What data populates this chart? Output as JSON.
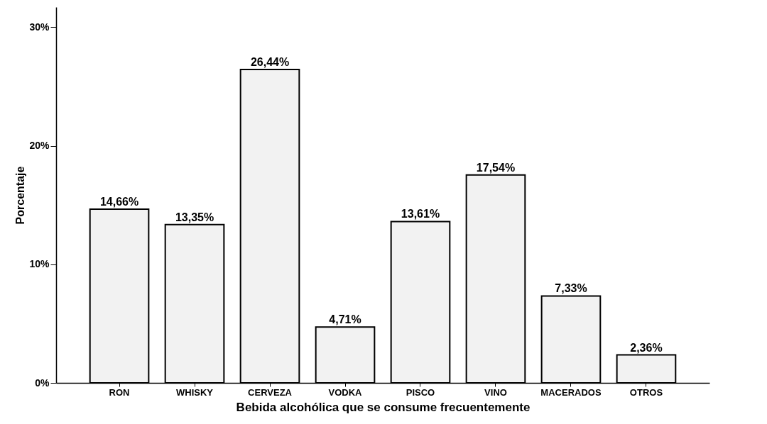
{
  "chart_data": {
    "type": "bar",
    "xlabel": "Bebida alcohólica que se consume frecuentemente",
    "ylabel": "Porcentaje",
    "categories": [
      "RON",
      "WHISKY",
      "CERVEZA",
      "VODKA",
      "PISCO",
      "VINO",
      "MACERADOS",
      "OTROS"
    ],
    "values": [
      14.66,
      13.35,
      26.44,
      4.71,
      13.61,
      17.54,
      7.33,
      2.36
    ],
    "value_labels": [
      "14,66%",
      "13,35%",
      "26,44%",
      "4,71%",
      "13,61%",
      "17,54%",
      "7,33%",
      "2,36%"
    ],
    "color": "#f2f2f2",
    "ylim": [
      0,
      31.7
    ],
    "yticks": [
      {
        "value": 0,
        "label": "0%"
      },
      {
        "value": 10,
        "label": "10%"
      },
      {
        "value": 20,
        "label": "20%"
      },
      {
        "value": 30,
        "label": "30%"
      }
    ],
    "grid": false
  }
}
